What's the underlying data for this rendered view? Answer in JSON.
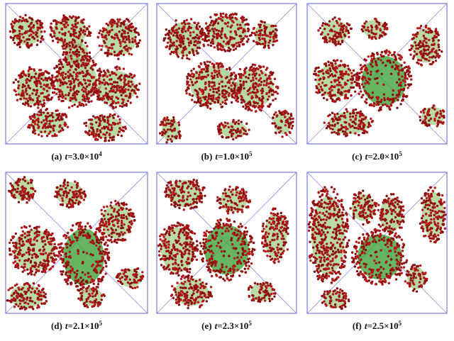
{
  "panels": [
    {
      "label": "(a)",
      "var": "t",
      "text": "=3.0×10",
      "exp": "4"
    },
    {
      "label": "(b)",
      "var": "t",
      "text": "=1.0×10",
      "exp": "5"
    },
    {
      "label": "(c)",
      "var": "t",
      "text": "=2.0×10",
      "exp": "5"
    },
    {
      "label": "(d)",
      "var": "t",
      "text": "=2.1×10",
      "exp": "5"
    },
    {
      "label": "(e)",
      "var": "t",
      "text": "=2.3×10",
      "exp": "5"
    },
    {
      "label": "(f)",
      "var": "t",
      "text": "=2.5×10",
      "exp": "5"
    }
  ]
}
